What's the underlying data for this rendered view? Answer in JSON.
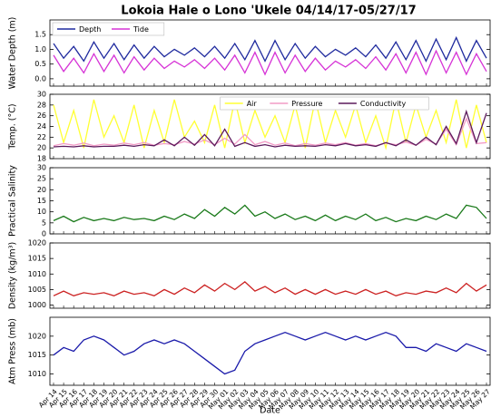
{
  "title": "Lokoia Hale o Lono 'Ukele 04/14/17-05/27/17",
  "chart_data": [
    {
      "type": "line",
      "ylabel": "Water Depth (m)",
      "ylim": [
        -0.25,
        2.0
      ],
      "yticks": [
        {
          "value": 0,
          "label": "0.0"
        },
        0.5,
        {
          "value": 1,
          "label": "1.0"
        },
        1.5
      ],
      "legend": "upper left",
      "series": [
        {
          "name": "Depth",
          "color": "#1f2a9e",
          "values": [
            1.2,
            0.7,
            1.1,
            0.6,
            1.25,
            0.7,
            1.2,
            0.65,
            1.15,
            0.7,
            1.1,
            0.75,
            1.0,
            0.8,
            1.05,
            0.75,
            1.1,
            0.7,
            1.2,
            0.65,
            1.3,
            0.6,
            1.3,
            0.65,
            1.2,
            0.7,
            1.1,
            0.75,
            1.0,
            0.8,
            1.05,
            0.75,
            1.15,
            0.7,
            1.25,
            0.65,
            1.3,
            0.6,
            1.35,
            0.65,
            1.4,
            0.6,
            1.3,
            0.7
          ]
        },
        {
          "name": "Tide",
          "color": "#d633d6",
          "values": [
            0.8,
            0.25,
            0.7,
            0.2,
            0.85,
            0.25,
            0.8,
            0.2,
            0.75,
            0.3,
            0.7,
            0.35,
            0.6,
            0.4,
            0.65,
            0.35,
            0.7,
            0.3,
            0.8,
            0.2,
            0.9,
            0.15,
            0.9,
            0.2,
            0.8,
            0.25,
            0.7,
            0.3,
            0.6,
            0.4,
            0.65,
            0.35,
            0.75,
            0.3,
            0.85,
            0.2,
            0.9,
            0.15,
            0.95,
            0.2,
            0.9,
            0.15,
            0.85,
            0.25
          ]
        }
      ]
    },
    {
      "type": "line",
      "ylabel": "Temp. (°C)",
      "ylim": [
        18,
        30
      ],
      "yticks": [
        18,
        20,
        22,
        24,
        26,
        28,
        30
      ],
      "legend": "upper center",
      "series": [
        {
          "name": "Air",
          "color": "#ffff33",
          "values": [
            28,
            21,
            27,
            20,
            29,
            22,
            26,
            21,
            28,
            20,
            27,
            21,
            29,
            22,
            25,
            21,
            28,
            20,
            29,
            21,
            27,
            22,
            26,
            21,
            28,
            20,
            29,
            21,
            27,
            22,
            28,
            21,
            26,
            20,
            29,
            21,
            28,
            22,
            27,
            21,
            29,
            20,
            28,
            21
          ]
        },
        {
          "name": "Pressure",
          "color": "#f29bc6",
          "values": [
            20.4,
            20.8,
            20.5,
            20.9,
            20.4,
            20.7,
            20.5,
            20.9,
            20.6,
            21.0,
            20.5,
            20.8,
            20.6,
            21.2,
            20.7,
            21.5,
            20.6,
            21.8,
            20.7,
            22.5,
            20.6,
            21.2,
            20.5,
            20.9,
            20.4,
            20.8,
            20.5,
            20.9,
            20.6,
            21.0,
            20.5,
            20.8,
            20.4,
            20.9,
            20.6,
            21.1,
            20.5,
            21.6,
            20.7,
            23.5,
            20.6,
            25.5,
            20.8,
            21.0
          ]
        },
        {
          "name": "Conductivity",
          "color": "#5c1a5c",
          "values": [
            20.2,
            20.3,
            20.2,
            20.4,
            20.2,
            20.3,
            20.3,
            20.5,
            20.3,
            20.6,
            20.4,
            21.5,
            20.4,
            22.0,
            20.5,
            22.5,
            20.4,
            23.5,
            20.3,
            21.0,
            20.3,
            20.6,
            20.2,
            20.5,
            20.3,
            20.4,
            20.3,
            20.6,
            20.4,
            20.8,
            20.4,
            20.6,
            20.3,
            21.0,
            20.4,
            21.5,
            20.5,
            22.0,
            20.6,
            24.0,
            20.8,
            26.8,
            21.0,
            26.5
          ]
        }
      ]
    },
    {
      "type": "line",
      "ylabel": "Practical Salinity",
      "ylim": [
        0,
        30
      ],
      "yticks": [
        0,
        5,
        10,
        15,
        20,
        25,
        30
      ],
      "color": "#1a7a1a",
      "values": [
        6,
        8,
        5.5,
        7.5,
        6,
        7,
        6,
        7.5,
        6.5,
        7,
        6,
        8,
        6.5,
        9,
        7,
        11,
        8,
        12,
        9,
        13,
        8,
        10,
        7,
        9,
        6.5,
        8,
        6,
        8.5,
        6,
        8,
        6.5,
        9,
        6,
        7.5,
        5.5,
        7,
        6,
        8,
        6.5,
        9,
        7,
        13,
        12,
        7
      ]
    },
    {
      "type": "line",
      "ylabel": "Density (kg/m³)",
      "ylim": [
        999,
        1020
      ],
      "yticks": [
        1000,
        1005,
        1010,
        1015,
        1020
      ],
      "color": "#cc2222",
      "values": [
        1003,
        1004.5,
        1003,
        1004,
        1003.5,
        1004,
        1003,
        1004.5,
        1003.5,
        1004,
        1003,
        1005,
        1003.5,
        1005.5,
        1004,
        1006.5,
        1004.5,
        1007,
        1005,
        1007.5,
        1004.5,
        1006,
        1004,
        1005.5,
        1003.5,
        1005,
        1003.5,
        1005,
        1003.5,
        1004.5,
        1003.5,
        1005,
        1003.5,
        1004.5,
        1003,
        1004,
        1003.5,
        1004.5,
        1004,
        1005.5,
        1004,
        1007,
        1004.5,
        1006.5
      ]
    },
    {
      "type": "line",
      "ylabel": "Atm Press (mb)",
      "xlabel": "Date",
      "ylim": [
        1007,
        1025
      ],
      "yticks": [
        1010,
        1015,
        1020
      ],
      "color": "#1a1aaa",
      "categories": [
        "Apr 14",
        "Apr 15",
        "Apr 16",
        "Apr 17",
        "Apr 18",
        "Apr 19",
        "Apr 20",
        "Apr 21",
        "Apr 22",
        "Apr 23",
        "Apr 24",
        "Apr 25",
        "Apr 26",
        "Apr 27",
        "Apr 28",
        "Apr 29",
        "Apr 30",
        "May 01",
        "May 02",
        "May 03",
        "May 04",
        "May 05",
        "May 06",
        "May 07",
        "May 08",
        "May 09",
        "May 10",
        "May 11",
        "May 12",
        "May 13",
        "May 14",
        "May 15",
        "May 16",
        "May 17",
        "May 18",
        "May 19",
        "May 20",
        "May 21",
        "May 22",
        "May 23",
        "May 24",
        "May 25",
        "May 26",
        "May 27"
      ],
      "values": [
        1015,
        1017,
        1016,
        1019,
        1020,
        1019,
        1017,
        1015,
        1016,
        1018,
        1019,
        1018,
        1019,
        1018,
        1016,
        1014,
        1012,
        1010,
        1011,
        1016,
        1018,
        1019,
        1020,
        1021,
        1020,
        1019,
        1020,
        1021,
        1020,
        1019,
        1020,
        1019,
        1020,
        1021,
        1020,
        1017,
        1017,
        1016,
        1018,
        1017,
        1016,
        1018,
        1017,
        1016
      ]
    }
  ]
}
